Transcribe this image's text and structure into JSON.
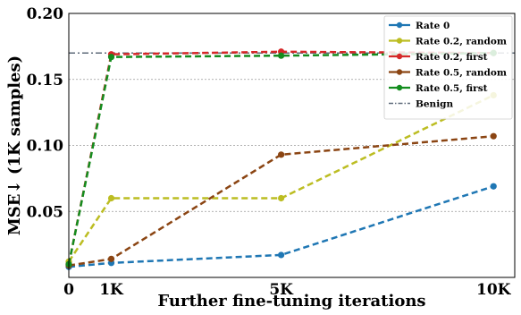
{
  "chart_data": {
    "type": "line",
    "xlabel": "Further fine-tuning iterations",
    "ylabel": "MSE↓ (1K samples)",
    "xlim": [
      0,
      10500
    ],
    "ylim": [
      0,
      0.2
    ],
    "x_ticks": [
      {
        "value": 0,
        "label": "0"
      },
      {
        "value": 1000,
        "label": "1K"
      },
      {
        "value": 5000,
        "label": "5K"
      },
      {
        "value": 10000,
        "label": "10K"
      }
    ],
    "y_ticks": [
      {
        "value": 0.05,
        "label": "0.05"
      },
      {
        "value": 0.1,
        "label": "0.10"
      },
      {
        "value": 0.15,
        "label": "0.15"
      },
      {
        "value": 0.2,
        "label": "0.20"
      }
    ],
    "grid": "horizontal-dashed",
    "legend_position": "top-right",
    "x": [
      0,
      1000,
      5000,
      10000
    ],
    "series": [
      {
        "name": "Rate 0",
        "color": "#1f77b4",
        "values": [
          0.008,
          0.011,
          0.017,
          0.069
        ]
      },
      {
        "name": "Rate 0.2, random",
        "color": "#bcbd22",
        "values": [
          0.012,
          0.06,
          0.06,
          0.138
        ]
      },
      {
        "name": "Rate 0.2, first",
        "color": "#d62728",
        "values": [
          0.01,
          0.169,
          0.171,
          0.17
        ]
      },
      {
        "name": "Rate 0.5, random",
        "color": "#8b4513",
        "values": [
          0.009,
          0.014,
          0.093,
          0.107
        ]
      },
      {
        "name": "Rate 0.5, first",
        "color": "#138d1e",
        "values": [
          0.01,
          0.167,
          0.168,
          0.17
        ]
      }
    ],
    "benign": {
      "name": "Benign",
      "color": "#5f6b7a",
      "value": 0.17
    }
  }
}
